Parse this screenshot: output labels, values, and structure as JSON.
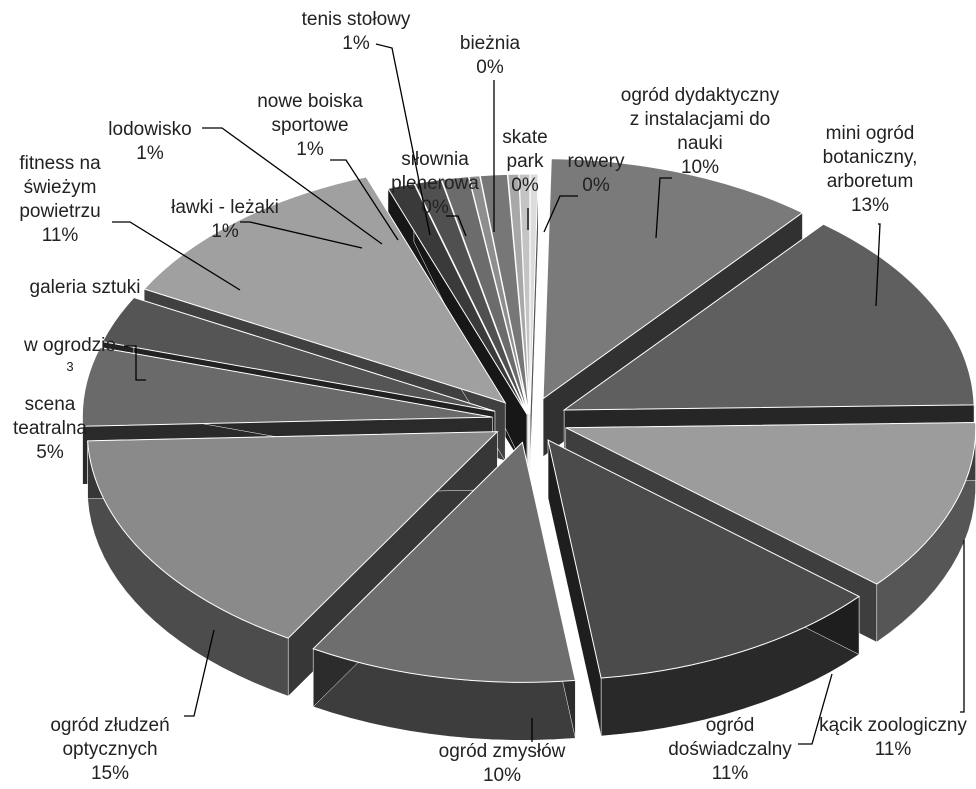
{
  "chart_data": {
    "type": "pie",
    "style": "3d-exploded",
    "slices": [
      {
        "name_lines": [
          "rowery"
        ],
        "value_text": "0%",
        "value": 0.3,
        "color": "#dcdcdc",
        "id": "rowery"
      },
      {
        "name_lines": [
          "ogród dydaktyczny",
          "z instalacjami do",
          "nauki"
        ],
        "value_text": "10%",
        "value": 10,
        "color": "#7a7a7a",
        "id": "ogrod-dydaktyczny"
      },
      {
        "name_lines": [
          "mini ogród",
          "botaniczny,",
          "arboretum"
        ],
        "value_text": "13%",
        "value": 13,
        "color": "#5f5f5f",
        "id": "mini-ogrod-botaniczny"
      },
      {
        "name_lines": [
          "kącik zoologiczny"
        ],
        "value_text": "11%",
        "value": 11,
        "color": "#9c9c9c",
        "id": "kacik-zoologiczny"
      },
      {
        "name_lines": [
          "ogród",
          "doświadczalny"
        ],
        "value_text": "11%",
        "value": 11,
        "color": "#4b4b4b",
        "id": "ogrod-doswiadczalny"
      },
      {
        "name_lines": [
          "ogród zmysłów"
        ],
        "value_text": "10%",
        "value": 10,
        "color": "#6e6e6e",
        "id": "ogrod-zmyslow"
      },
      {
        "name_lines": [
          "ogród złudzeń",
          "optycznych"
        ],
        "value_text": "15%",
        "value": 15,
        "color": "#8a8a8a",
        "id": "ogrod-zludzen"
      },
      {
        "name_lines": [
          "scena",
          "teatralna"
        ],
        "value_text": "5%",
        "value": 5,
        "color": "#6a6a6a",
        "id": "scena-teatralna"
      },
      {
        "name_lines": [
          "w ogrodzie"
        ],
        "value_text": "3",
        "value": 3,
        "color": "#555555",
        "id": "galeria-w-ogrodzie"
      },
      {
        "name_lines": [
          "fitness na",
          "świeżym",
          "powietrzu"
        ],
        "value_text": "11%",
        "value": 11,
        "color": "#a0a0a0",
        "id": "fitness"
      },
      {
        "name_lines": [
          "ławki - leżaki"
        ],
        "value_text": "1%",
        "value": 1,
        "color": "#3a3a3a",
        "id": "lawki-lezaki"
      },
      {
        "name_lines": [
          "lodowisko"
        ],
        "value_text": "1%",
        "value": 1,
        "color": "#505050",
        "id": "lodowisko"
      },
      {
        "name_lines": [
          "nowe boiska",
          "sportowe"
        ],
        "value_text": "1%",
        "value": 1,
        "color": "#6c6c6c",
        "id": "nowe-boiska"
      },
      {
        "name_lines": [
          "siłownia",
          "plenerowa"
        ],
        "value_text": "0%",
        "value": 0.4,
        "color": "#8e8e8e",
        "id": "silownia"
      },
      {
        "name_lines": [
          "tenis stołowy"
        ],
        "value_text": "1%",
        "value": 1,
        "color": "#777777",
        "id": "tenis"
      },
      {
        "name_lines": [
          "bieżnia"
        ],
        "value_text": "0%",
        "value": 0.4,
        "color": "#a8a8a8",
        "id": "bieznia"
      },
      {
        "name_lines": [
          "skate",
          "park"
        ],
        "value_text": "0%",
        "value": 0.4,
        "color": "#c4c4c4",
        "id": "skate-park"
      }
    ],
    "extra_text": [
      "galeria sztuki"
    ]
  }
}
